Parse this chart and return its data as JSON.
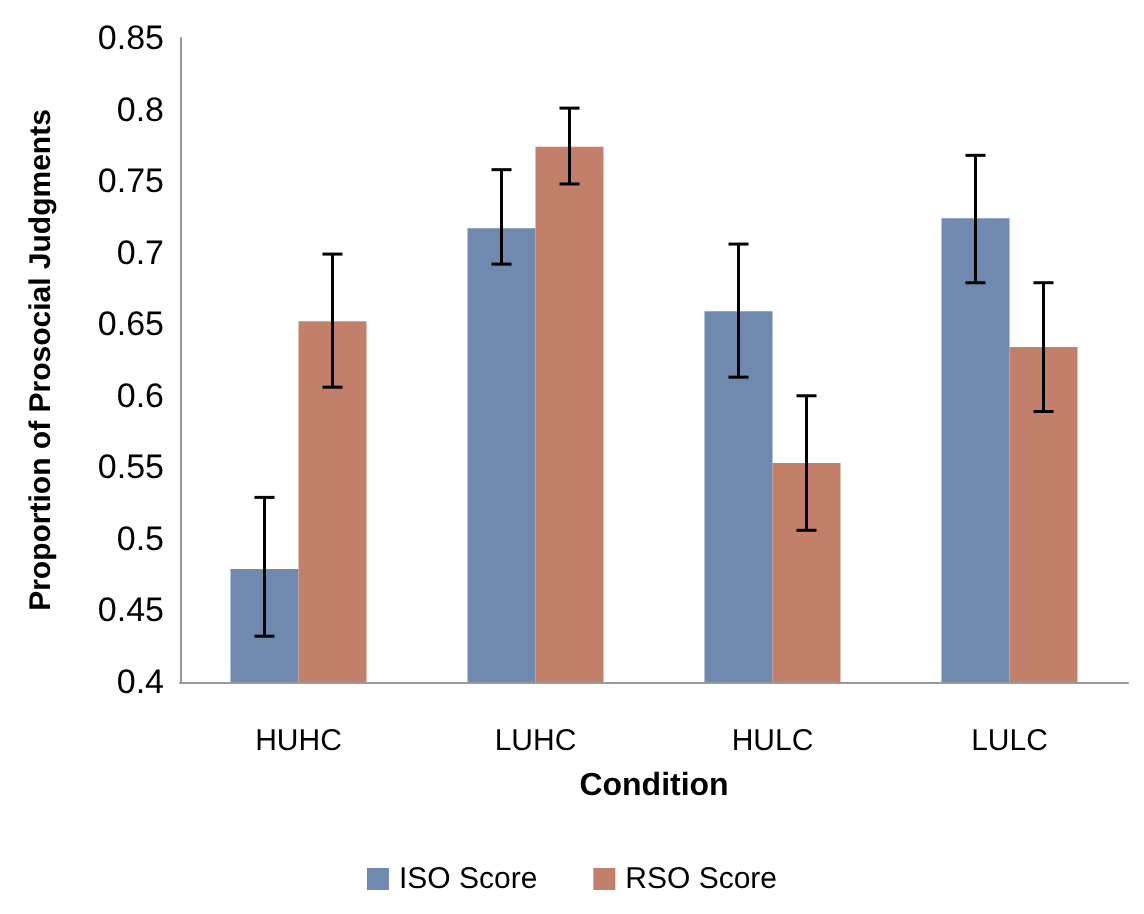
{
  "chart_data": {
    "type": "bar",
    "xlabel": "Condition",
    "ylabel": "Proportion of Prosocial Judgments",
    "categories": [
      "HUHC",
      "LUHC",
      "HULC",
      "LULC"
    ],
    "series": [
      {
        "name": "ISO Score",
        "color": "#7089ae",
        "values": [
          0.479,
          0.717,
          0.659,
          0.724
        ],
        "errors": [
          [
            0.432,
            0.529
          ],
          [
            0.692,
            0.758
          ],
          [
            0.613,
            0.706
          ],
          [
            0.679,
            0.768
          ]
        ]
      },
      {
        "name": "RSO Score",
        "color": "#c2806a",
        "values": [
          0.652,
          0.774,
          0.553,
          0.634
        ],
        "errors": [
          [
            0.606,
            0.699
          ],
          [
            0.748,
            0.801
          ],
          [
            0.506,
            0.6
          ],
          [
            0.589,
            0.679
          ]
        ]
      }
    ],
    "ylim": [
      0.4,
      0.85
    ],
    "yticks": [
      0.4,
      0.45,
      0.5,
      0.55,
      0.6,
      0.65,
      0.7,
      0.75,
      0.8,
      0.85
    ],
    "grid": false,
    "legend": "bottom"
  }
}
